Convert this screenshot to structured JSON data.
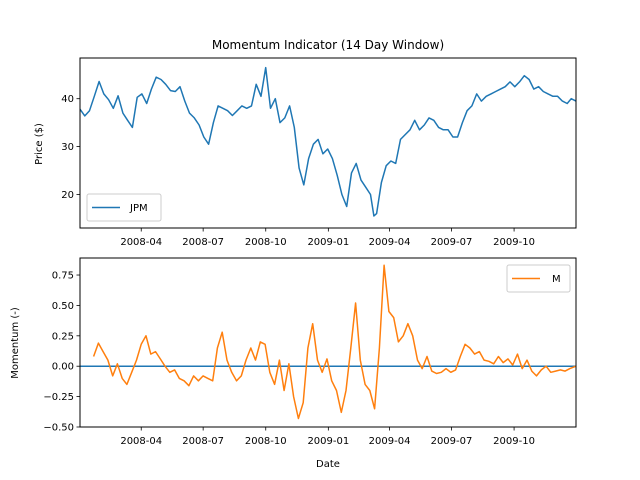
{
  "chart_data": [
    {
      "type": "line",
      "title": "Momentum Indicator (14 Day Window)",
      "xlabel": "",
      "ylabel": "Price ($)",
      "x_range": [
        "2008-01-02",
        "2009-12-31"
      ],
      "ylim": [
        13,
        48.5
      ],
      "xtick_labels": [
        "2008-04",
        "2008-07",
        "2008-10",
        "2009-01",
        "2009-04",
        "2009-07",
        "2009-10"
      ],
      "xtick_dates": [
        "2008-04-01",
        "2008-07-01",
        "2008-10-01",
        "2009-01-01",
        "2009-04-01",
        "2009-07-01",
        "2009-10-01"
      ],
      "yticks": [
        20,
        30,
        40
      ],
      "legend_position": "lower-left",
      "series": [
        {
          "name": "JPM",
          "color": "#1f77b4",
          "points": [
            [
              "2008-01-02",
              37.8
            ],
            [
              "2008-01-09",
              36.4
            ],
            [
              "2008-01-16",
              37.5
            ],
            [
              "2008-01-23",
              40.5
            ],
            [
              "2008-01-30",
              43.6
            ],
            [
              "2008-02-06",
              41.0
            ],
            [
              "2008-02-13",
              39.8
            ],
            [
              "2008-02-20",
              38.0
            ],
            [
              "2008-02-27",
              40.6
            ],
            [
              "2008-03-05",
              37.0
            ],
            [
              "2008-03-12",
              35.5
            ],
            [
              "2008-03-19",
              34.0
            ],
            [
              "2008-03-26",
              40.3
            ],
            [
              "2008-04-02",
              41.0
            ],
            [
              "2008-04-09",
              39.0
            ],
            [
              "2008-04-16",
              42.0
            ],
            [
              "2008-04-23",
              44.5
            ],
            [
              "2008-04-30",
              44.0
            ],
            [
              "2008-05-07",
              43.0
            ],
            [
              "2008-05-14",
              41.7
            ],
            [
              "2008-05-21",
              41.5
            ],
            [
              "2008-05-28",
              42.5
            ],
            [
              "2008-06-04",
              39.5
            ],
            [
              "2008-06-11",
              37.0
            ],
            [
              "2008-06-18",
              36.0
            ],
            [
              "2008-06-25",
              34.5
            ],
            [
              "2008-07-02",
              32.0
            ],
            [
              "2008-07-09",
              30.5
            ],
            [
              "2008-07-16",
              35.0
            ],
            [
              "2008-07-23",
              38.5
            ],
            [
              "2008-07-30",
              38.0
            ],
            [
              "2008-08-06",
              37.5
            ],
            [
              "2008-08-13",
              36.5
            ],
            [
              "2008-08-20",
              37.5
            ],
            [
              "2008-08-27",
              38.5
            ],
            [
              "2008-09-03",
              38.0
            ],
            [
              "2008-09-10",
              38.5
            ],
            [
              "2008-09-17",
              43.0
            ],
            [
              "2008-09-24",
              40.5
            ],
            [
              "2008-10-01",
              46.5
            ],
            [
              "2008-10-08",
              38.0
            ],
            [
              "2008-10-15",
              40.0
            ],
            [
              "2008-10-22",
              35.0
            ],
            [
              "2008-10-29",
              36.0
            ],
            [
              "2008-11-05",
              38.5
            ],
            [
              "2008-11-12",
              34.0
            ],
            [
              "2008-11-19",
              25.5
            ],
            [
              "2008-11-26",
              22.0
            ],
            [
              "2008-12-03",
              27.5
            ],
            [
              "2008-12-10",
              30.5
            ],
            [
              "2008-12-17",
              31.5
            ],
            [
              "2008-12-24",
              28.5
            ],
            [
              "2008-12-31",
              29.5
            ],
            [
              "2009-01-07",
              27.5
            ],
            [
              "2009-01-14",
              24.0
            ],
            [
              "2009-01-21",
              20.0
            ],
            [
              "2009-01-28",
              17.5
            ],
            [
              "2009-02-04",
              24.5
            ],
            [
              "2009-02-11",
              26.5
            ],
            [
              "2009-02-18",
              23.0
            ],
            [
              "2009-02-25",
              21.5
            ],
            [
              "2009-03-04",
              20.0
            ],
            [
              "2009-03-09",
              15.5
            ],
            [
              "2009-03-13",
              16.0
            ],
            [
              "2009-03-20",
              22.5
            ],
            [
              "2009-03-27",
              26.0
            ],
            [
              "2009-04-03",
              27.0
            ],
            [
              "2009-04-10",
              26.5
            ],
            [
              "2009-04-17",
              31.5
            ],
            [
              "2009-04-24",
              32.5
            ],
            [
              "2009-05-01",
              33.5
            ],
            [
              "2009-05-08",
              35.5
            ],
            [
              "2009-05-15",
              33.5
            ],
            [
              "2009-05-22",
              34.5
            ],
            [
              "2009-05-29",
              36.0
            ],
            [
              "2009-06-05",
              35.5
            ],
            [
              "2009-06-12",
              34.0
            ],
            [
              "2009-06-19",
              33.5
            ],
            [
              "2009-06-26",
              33.5
            ],
            [
              "2009-07-03",
              32.0
            ],
            [
              "2009-07-10",
              32.0
            ],
            [
              "2009-07-17",
              35.0
            ],
            [
              "2009-07-24",
              37.5
            ],
            [
              "2009-07-31",
              38.5
            ],
            [
              "2009-08-07",
              41.0
            ],
            [
              "2009-08-14",
              39.5
            ],
            [
              "2009-08-21",
              40.5
            ],
            [
              "2009-08-28",
              41.0
            ],
            [
              "2009-09-04",
              41.5
            ],
            [
              "2009-09-11",
              42.0
            ],
            [
              "2009-09-18",
              42.5
            ],
            [
              "2009-09-25",
              43.5
            ],
            [
              "2009-10-02",
              42.5
            ],
            [
              "2009-10-09",
              43.5
            ],
            [
              "2009-10-16",
              44.8
            ],
            [
              "2009-10-23",
              44.0
            ],
            [
              "2009-10-30",
              42.0
            ],
            [
              "2009-11-06",
              42.5
            ],
            [
              "2009-11-13",
              41.5
            ],
            [
              "2009-11-20",
              41.0
            ],
            [
              "2009-11-27",
              40.5
            ],
            [
              "2009-12-04",
              40.5
            ],
            [
              "2009-12-11",
              39.5
            ],
            [
              "2009-12-18",
              39.0
            ],
            [
              "2009-12-24",
              40.0
            ],
            [
              "2009-12-31",
              39.5
            ]
          ]
        }
      ]
    },
    {
      "type": "line",
      "title": "",
      "xlabel": "Date",
      "ylabel": "Momentum (-)",
      "x_range": [
        "2008-01-02",
        "2009-12-31"
      ],
      "ylim": [
        -0.5,
        0.89
      ],
      "xtick_labels": [
        "2008-04",
        "2008-07",
        "2008-10",
        "2009-01",
        "2009-04",
        "2009-07",
        "2009-10"
      ],
      "xtick_dates": [
        "2008-04-01",
        "2008-07-01",
        "2008-10-01",
        "2009-01-01",
        "2009-04-01",
        "2009-07-01",
        "2009-10-01"
      ],
      "yticks": [
        -0.5,
        -0.25,
        0.0,
        0.25,
        0.5,
        0.75
      ],
      "ytick_labels": [
        "−0.50",
        "−0.25",
        "0.00",
        "0.25",
        "0.50",
        "0.75"
      ],
      "legend_position": "upper-right",
      "reference_line": {
        "y": 0,
        "color": "#1f77b4"
      },
      "series": [
        {
          "name": "M",
          "color": "#ff7f0e",
          "points": [
            [
              "2008-01-22",
              0.08
            ],
            [
              "2008-01-29",
              0.19
            ],
            [
              "2008-02-05",
              0.12
            ],
            [
              "2008-02-12",
              0.05
            ],
            [
              "2008-02-19",
              -0.08
            ],
            [
              "2008-02-26",
              0.02
            ],
            [
              "2008-03-04",
              -0.1
            ],
            [
              "2008-03-11",
              -0.15
            ],
            [
              "2008-03-18",
              -0.05
            ],
            [
              "2008-03-25",
              0.05
            ],
            [
              "2008-04-01",
              0.18
            ],
            [
              "2008-04-08",
              0.25
            ],
            [
              "2008-04-15",
              0.1
            ],
            [
              "2008-04-22",
              0.12
            ],
            [
              "2008-04-29",
              0.06
            ],
            [
              "2008-05-06",
              0.0
            ],
            [
              "2008-05-13",
              -0.05
            ],
            [
              "2008-05-20",
              -0.03
            ],
            [
              "2008-05-27",
              -0.1
            ],
            [
              "2008-06-03",
              -0.12
            ],
            [
              "2008-06-10",
              -0.16
            ],
            [
              "2008-06-17",
              -0.08
            ],
            [
              "2008-06-24",
              -0.12
            ],
            [
              "2008-07-01",
              -0.08
            ],
            [
              "2008-07-08",
              -0.1
            ],
            [
              "2008-07-15",
              -0.12
            ],
            [
              "2008-07-22",
              0.15
            ],
            [
              "2008-07-29",
              0.28
            ],
            [
              "2008-08-05",
              0.05
            ],
            [
              "2008-08-12",
              -0.05
            ],
            [
              "2008-08-19",
              -0.12
            ],
            [
              "2008-08-26",
              -0.08
            ],
            [
              "2008-09-02",
              0.05
            ],
            [
              "2008-09-09",
              0.15
            ],
            [
              "2008-09-16",
              0.05
            ],
            [
              "2008-09-23",
              0.2
            ],
            [
              "2008-09-30",
              0.18
            ],
            [
              "2008-10-07",
              -0.05
            ],
            [
              "2008-10-14",
              -0.15
            ],
            [
              "2008-10-21",
              0.05
            ],
            [
              "2008-10-28",
              -0.2
            ],
            [
              "2008-11-04",
              0.02
            ],
            [
              "2008-11-11",
              -0.25
            ],
            [
              "2008-11-18",
              -0.43
            ],
            [
              "2008-11-25",
              -0.3
            ],
            [
              "2008-12-02",
              0.15
            ],
            [
              "2008-12-09",
              0.35
            ],
            [
              "2008-12-16",
              0.05
            ],
            [
              "2008-12-23",
              -0.05
            ],
            [
              "2008-12-30",
              0.06
            ],
            [
              "2009-01-06",
              -0.12
            ],
            [
              "2009-01-13",
              -0.2
            ],
            [
              "2009-01-20",
              -0.38
            ],
            [
              "2009-01-27",
              -0.2
            ],
            [
              "2009-02-03",
              0.15
            ],
            [
              "2009-02-10",
              0.52
            ],
            [
              "2009-02-17",
              0.05
            ],
            [
              "2009-02-24",
              -0.15
            ],
            [
              "2009-03-03",
              -0.2
            ],
            [
              "2009-03-10",
              -0.35
            ],
            [
              "2009-03-17",
              0.15
            ],
            [
              "2009-03-24",
              0.83
            ],
            [
              "2009-03-31",
              0.45
            ],
            [
              "2009-04-07",
              0.4
            ],
            [
              "2009-04-14",
              0.2
            ],
            [
              "2009-04-21",
              0.25
            ],
            [
              "2009-04-28",
              0.35
            ],
            [
              "2009-05-05",
              0.25
            ],
            [
              "2009-05-12",
              0.05
            ],
            [
              "2009-05-19",
              -0.02
            ],
            [
              "2009-05-26",
              0.08
            ],
            [
              "2009-06-02",
              -0.04
            ],
            [
              "2009-06-09",
              -0.06
            ],
            [
              "2009-06-16",
              -0.05
            ],
            [
              "2009-06-23",
              -0.02
            ],
            [
              "2009-06-30",
              -0.05
            ],
            [
              "2009-07-07",
              -0.03
            ],
            [
              "2009-07-14",
              0.08
            ],
            [
              "2009-07-21",
              0.18
            ],
            [
              "2009-07-28",
              0.15
            ],
            [
              "2009-08-04",
              0.1
            ],
            [
              "2009-08-11",
              0.12
            ],
            [
              "2009-08-18",
              0.05
            ],
            [
              "2009-08-25",
              0.04
            ],
            [
              "2009-09-01",
              0.02
            ],
            [
              "2009-09-08",
              0.08
            ],
            [
              "2009-09-15",
              0.03
            ],
            [
              "2009-09-22",
              0.06
            ],
            [
              "2009-09-29",
              0.01
            ],
            [
              "2009-10-06",
              0.1
            ],
            [
              "2009-10-13",
              -0.02
            ],
            [
              "2009-10-20",
              0.05
            ],
            [
              "2009-10-27",
              -0.04
            ],
            [
              "2009-11-03",
              -0.08
            ],
            [
              "2009-11-10",
              -0.03
            ],
            [
              "2009-11-17",
              0.0
            ],
            [
              "2009-11-24",
              -0.05
            ],
            [
              "2009-12-01",
              -0.04
            ],
            [
              "2009-12-08",
              -0.03
            ],
            [
              "2009-12-15",
              -0.04
            ],
            [
              "2009-12-22",
              -0.02
            ],
            [
              "2009-12-31",
              0.0
            ]
          ]
        }
      ]
    }
  ]
}
